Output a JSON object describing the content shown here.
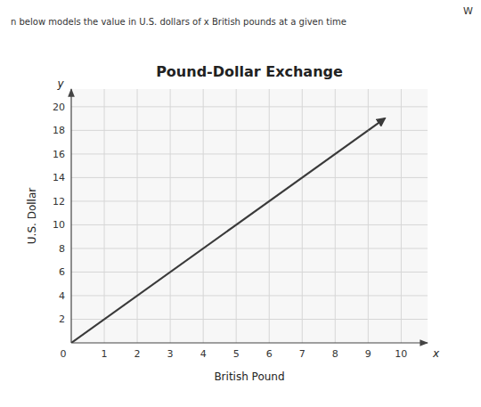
{
  "chart_data": {
    "type": "line",
    "title": "Pound-Dollar Exchange",
    "x_label": "British Pound",
    "y_label": "U.S. Dollar",
    "x": [
      0,
      9
    ],
    "values": [
      0,
      18
    ],
    "arrow": {
      "x": [
        9,
        9.5
      ],
      "values": [
        18,
        19.0
      ]
    },
    "color": "#3a3a3a",
    "xlim": [
      0,
      10.8
    ],
    "ylim": [
      0,
      21.5
    ],
    "xticks": [
      1,
      2,
      3,
      4,
      5,
      6,
      7,
      8,
      9,
      10
    ],
    "yticks": [
      2,
      4,
      6,
      8,
      10,
      12,
      14,
      16,
      18,
      20
    ],
    "grid": true,
    "annotations": [
      "n below models the value in U.S. dollars of x British pounds at a given time",
      "W",
      "x",
      "y",
      "0"
    ]
  }
}
